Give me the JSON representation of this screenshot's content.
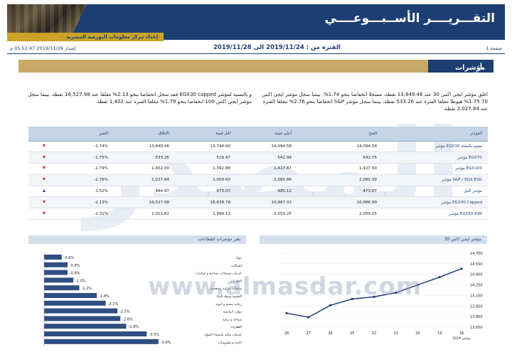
{
  "header": {
    "title": "التقـــريــــر الأســبـــوعــــي",
    "subtitle": "إعداد مركز معلومات البورصة المصرية"
  },
  "info": {
    "period": "الفترة من : 2019/11/24 الى 2019/11/28",
    "issue_date": "إصدار 2019/11/28 05:52:47 م",
    "page": "صفحة 1"
  },
  "section": {
    "number": "أ.",
    "title": "مؤشرات السوق"
  },
  "paragraphs": {
    "right": "اغلق مؤشر ايجي اكس 30 عند 13,849.46 نقطة، مسجلا انخفاضا بنحو 1.74%. بينما سجل مؤشر ايجي اكس 70 1.75% هبوطا مغلقا الفترة عند 533.26 نقطة، بينما سجل مؤشر S&P انخفاضا بنحو 2.76% مغلقا الفترة عند 2,027.84 نقطة.",
    "left": "و بالنسبة لمؤشر EGX30 capped فقد سجل انخفاضا بنحو 2.13% مغلقا عند 16,527.98 نقطة. بينما سجل مؤشر ايجي اكس 100 انخفاضا بنحو 1.79% مغلقا الفترة عند 1,402 نقطة."
  },
  "table": {
    "headers": {
      "name": "المؤشر",
      "open": "الفتح",
      "high": "اعلى قيمة",
      "low": "اقل قيمة",
      "close": "الإغلاق",
      "change": "التغير"
    },
    "rows": [
      {
        "name": "مؤشر EGX30 مقوم بالعملة",
        "open": "14,094.58",
        "high": "14,094.58",
        "low": "13,744.60",
        "close": "13,849.46",
        "change": "-1.74%",
        "dir": "down"
      },
      {
        "name": "مؤشر EGX70",
        "open": "542.75",
        "high": "542.99",
        "low": "529.47",
        "close": "533.26",
        "change": "-1.75%",
        "dir": "down"
      },
      {
        "name": "مؤشر EGX100",
        "open": "1,427.50",
        "high": "1,427.87",
        "low": "1,392.88",
        "close": "1,402.00",
        "change": "-1.79%",
        "dir": "down"
      },
      {
        "name": "مؤشر S&P / EGX ESG",
        "open": "2,085.39",
        "high": "2,085.88",
        "low": "2,009.60",
        "close": "2,027.84",
        "change": "-2.76%",
        "dir": "down"
      },
      {
        "name": "مؤشر النيل",
        "open": "473.07",
        "high": "485.12",
        "low": "473.07",
        "close": "484.97",
        "change": "2.52%",
        "dir": "up"
      },
      {
        "name": "مؤشر EGX30 Capped",
        "open": "16,886.99",
        "high": "16,887.02",
        "low": "16,438.78",
        "close": "16,527.98",
        "change": "-2.13%",
        "dir": "down"
      },
      {
        "name": "مؤشر EGX50 EWI",
        "open": "2,059.25",
        "high": "2,059.25",
        "low": "1,999.13",
        "close": "2,011.62",
        "change": "-2.31%",
        "dir": "down"
      }
    ]
  },
  "watermark": {
    "url": "www.almasdar.com",
    "brand": "المصدر"
  },
  "colors": {
    "navy": "#1c3f73",
    "gold": "#c8a968",
    "bar": "#2f4f82",
    "down": "#c0262d",
    "header_bg": "#c5d4e6"
  },
  "chart_data": [
    {
      "type": "bar",
      "title": "تغير مؤشرات القطاعات",
      "orientation": "horizontal",
      "categories": [
        "بنوك",
        "اتصالات",
        "خدمات ومنتجات صناعية و سيارات",
        "العقارات",
        "منتجات منزلية وشخصية",
        "التشييد ومواد البناء",
        "رعاية صحية و ادوية",
        "موارد اساسية",
        "سياحة و ترفيه",
        "العقارات",
        "خدمات مالية باستثناء البنوك",
        "اغذية و مشروبات"
      ],
      "values": [
        -0.6,
        -0.8,
        -0.8,
        -1.0,
        -1.2,
        -1.8,
        -2.1,
        -2.5,
        -2.6,
        -2.8,
        -3.5,
        -3.9
      ],
      "value_labels": [
        "-0.6%",
        "-0.8%",
        "-0.8%",
        "-1.0%",
        "-1.2%",
        "-1.8%",
        "-2.1%",
        "-2.5%",
        "-2.6%",
        "-2.8%",
        "-3.5%",
        "-3.9%"
      ]
    },
    {
      "type": "line",
      "title": "مؤشر ايجي اكس 30",
      "x": [
        "18",
        "19",
        "20",
        "21",
        "22",
        "25",
        "26",
        "27",
        "28"
      ],
      "x_order": "right-to-left",
      "xlabel_sub": "نوفمبر 2019",
      "values": [
        14480,
        14360,
        14250,
        14140,
        14080,
        14050,
        13960,
        13790,
        13849
      ],
      "yticks": [
        13650,
        13800,
        13950,
        14100,
        14250,
        14400,
        14550,
        14700
      ],
      "ytick_labels": [
        "13,650",
        "13,800",
        "13,950",
        "14,100",
        "14,250",
        "14,400",
        "14,550",
        "14,700"
      ],
      "ylim": [
        13650,
        14700
      ]
    }
  ]
}
